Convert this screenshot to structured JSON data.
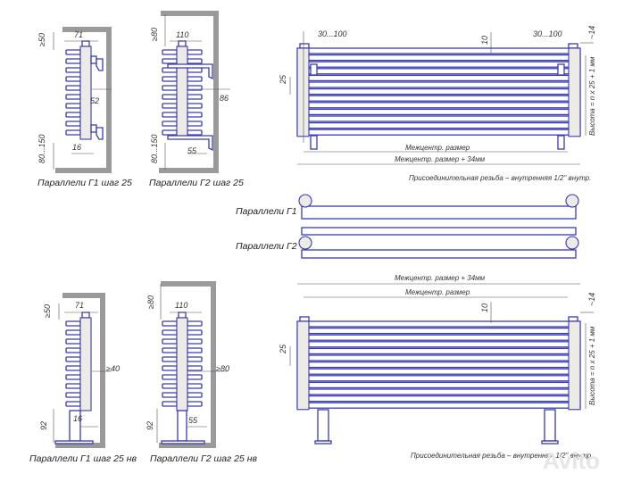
{
  "side_views": [
    {
      "caption": "Параллели Г1 шаг 25",
      "top_gap": "≥50",
      "depth": "71",
      "wall_gap": "52",
      "offset": "16",
      "bottom_gap": "80...150"
    },
    {
      "caption": "Параллели Г2 шаг 25",
      "top_gap": "≥80",
      "depth": "110",
      "wall_gap": "86",
      "offset": "55",
      "bottom_gap": "80...150"
    },
    {
      "caption": "Параллели Г1 шаг 25 нв",
      "top_gap": "≥50",
      "depth": "71",
      "wall_gap": "≥40",
      "offset": "16",
      "bottom_gap": "92"
    },
    {
      "caption": "Параллели Г2 шаг 25 нв",
      "top_gap": "≥80",
      "depth": "110",
      "wall_gap": "≥80",
      "offset": "55",
      "bottom_gap": "92"
    }
  ],
  "front_wall": {
    "bracket_left": "30...100",
    "bracket_right": "30...100",
    "tube_gap": "10",
    "top_offset": "~14",
    "pitch": "25",
    "height_formula": "Высота = n x 25 + 1 мм",
    "center_distance": "Межцентр. размер",
    "overall": "Межцентр. размер + 34мм",
    "thread_note": "Присоединительная резьба – внутренняя 1/2\" внутр."
  },
  "top_views": {
    "g1_label": "Параллели Г1",
    "g2_label": "Параллели Г2"
  },
  "front_floor": {
    "overall": "Межцентр. размер + 34мм",
    "center_distance": "Межцентр. размер",
    "tube_gap": "10",
    "top_offset": "~14",
    "pitch": "25",
    "height_formula": "Высота = n x 25 + 1 мм",
    "thread_note": "Присоединительная резьба – внутренняя 1/2\" внутр."
  },
  "watermark": "Avito",
  "colors": {
    "tube": "#3a3ab8",
    "wall": "#9a9a9a",
    "column": "#ecebe6"
  }
}
